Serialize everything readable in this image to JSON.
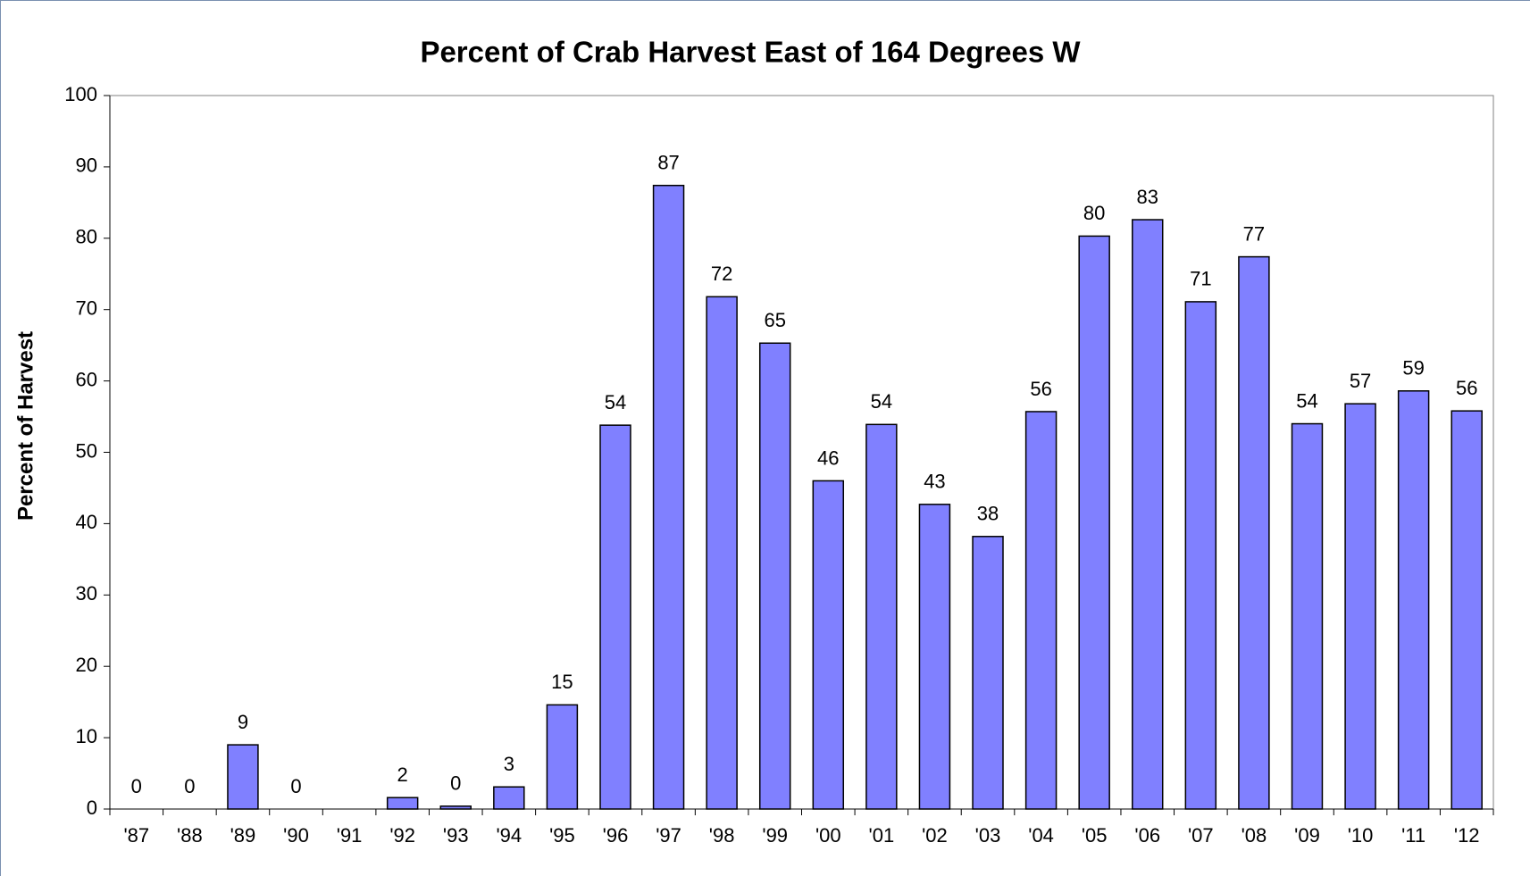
{
  "chart_data": {
    "type": "bar",
    "title": "Percent of Crab Harvest East of 164 Degrees W",
    "y_label": "Percent of Harvest",
    "categories": [
      "'87",
      "'88",
      "'89",
      "'90",
      "'91",
      "'92",
      "'93",
      "'94",
      "'95",
      "'96",
      "'97",
      "'98",
      "'99",
      "'00",
      "'01",
      "'02",
      "'03",
      "'04",
      "'05",
      "'06",
      "'07",
      "'08",
      "'09",
      "'10",
      "'11",
      "'12"
    ],
    "values": [
      0,
      0,
      9.0,
      0,
      null,
      1.6,
      0.4,
      3.1,
      14.6,
      53.8,
      87.4,
      71.8,
      65.3,
      46.0,
      53.9,
      42.7,
      38.2,
      55.7,
      80.3,
      82.6,
      71.1,
      77.4,
      54.0,
      56.8,
      58.6,
      55.8
    ],
    "value_labels": [
      "0",
      "0",
      "9",
      "0",
      null,
      "2",
      "0",
      "3",
      "15",
      "54",
      "87",
      "72",
      "65",
      "46",
      "54",
      "43",
      "38",
      "56",
      "80",
      "83",
      "71",
      "77",
      "54",
      "57",
      "59",
      "56"
    ],
    "color": "#8080ff",
    "ylim": [
      0,
      100
    ],
    "yticks": [
      0,
      10,
      20,
      30,
      40,
      50,
      60,
      70,
      80,
      90,
      100
    ],
    "grid": false
  }
}
